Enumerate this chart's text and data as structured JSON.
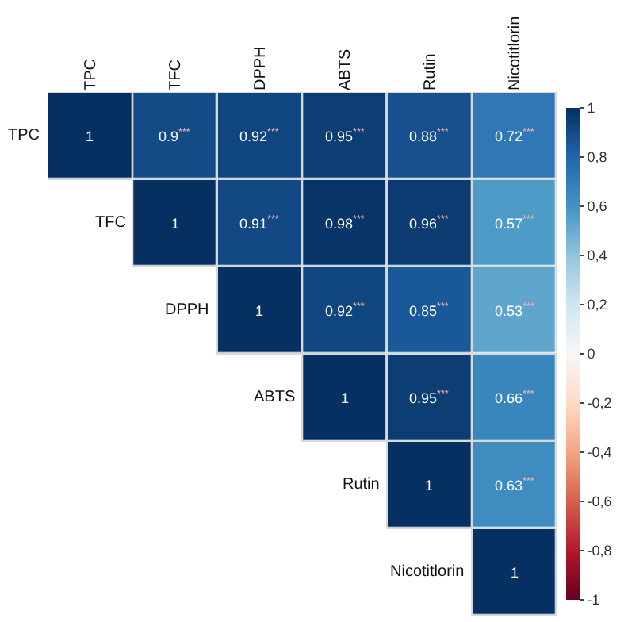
{
  "chart_data": {
    "type": "heatmap",
    "categories": [
      "TPC",
      "TFC",
      "DPPH",
      "ABTS",
      "Rutin",
      "Nicotitlorin"
    ],
    "y_categories": [
      "TPC",
      "TFC",
      "DPPH",
      "ABTS",
      "Rutin",
      "Nicotitlorin"
    ],
    "cells": [
      [
        1,
        0.9,
        0.92,
        0.95,
        0.88,
        0.72
      ],
      [
        null,
        1,
        0.91,
        0.98,
        0.96,
        0.57
      ],
      [
        null,
        null,
        1,
        0.92,
        0.85,
        0.53
      ],
      [
        null,
        null,
        null,
        1,
        0.95,
        0.66
      ],
      [
        null,
        null,
        null,
        null,
        1,
        0.63
      ],
      [
        null,
        null,
        null,
        null,
        null,
        1
      ]
    ],
    "cell_labels": [
      [
        "1",
        "0.9$^{***}$",
        "0.92$^{***}$",
        "0.95$^{***}$",
        "0.88$^{***}$",
        "0.72$^{***}$"
      ],
      [
        null,
        "1",
        "0.91$^{***}$",
        "0.98$^{***}$",
        "0.96$^{***}$",
        "0.57$^{***}$"
      ],
      [
        null,
        null,
        "1",
        "0.92$^{***}$",
        "0.85$^{***}$",
        "0.53$^{***}$"
      ],
      [
        null,
        null,
        null,
        "1",
        "0.95$^{***}$",
        "0.66$^{***}$"
      ],
      [
        null,
        null,
        null,
        null,
        "1",
        "0.63$^{***}$"
      ],
      [
        null,
        null,
        null,
        null,
        null,
        "1"
      ]
    ],
    "clim": [
      -1,
      1
    ],
    "cticks": [
      {
        "value": 1,
        "label": "1"
      },
      {
        "value": 0.8,
        "label": "0,8"
      },
      {
        "value": 0.6,
        "label": "0,6"
      },
      {
        "value": 0.4,
        "label": "0,4"
      },
      {
        "value": 0.2,
        "label": "0,2"
      },
      {
        "value": 0,
        "label": "0"
      },
      {
        "value": -0.2,
        "label": "-0,2"
      },
      {
        "value": -0.4,
        "label": "-0,4"
      },
      {
        "value": -0.6,
        "label": "-0,6"
      },
      {
        "value": -0.8,
        "label": "-0,8"
      },
      {
        "value": -1,
        "label": "-1"
      }
    ]
  }
}
